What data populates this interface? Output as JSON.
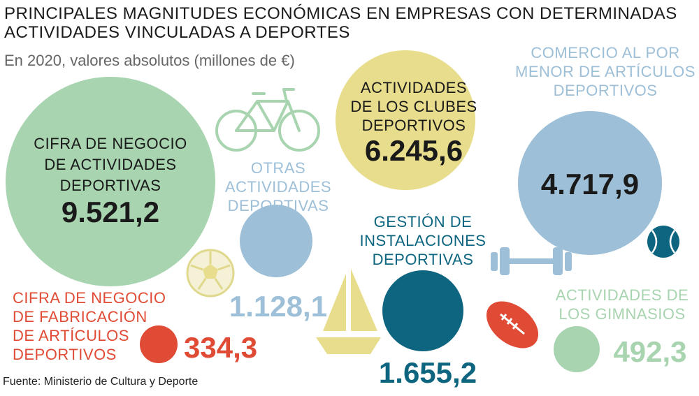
{
  "title_line1": "PRINCIPALES MAGNITUDES ECONÓMICAS EN EMPRESAS CON DETERMINADAS",
  "title_line2": "ACTIVIDADES VINCULADAS A DEPORTES",
  "subtitle": "En 2020, valores absolutos (millones de €)",
  "source": "Fuente: Ministerio de Cultura y Deporte",
  "colors": {
    "green": "#a8d4b0",
    "yellow": "#e8dd8c",
    "lightblue": "#9dbfd7",
    "darkblue": "#0e6580",
    "red": "#e04b35",
    "text_dark": "#1a1a1a"
  },
  "chart_data": {
    "type": "bubble",
    "unit": "millones de €",
    "items": [
      {
        "label_lines": [
          "CIFRA DE NEGOCIO",
          "DE ACTIVIDADES",
          "DEPORTIVAS"
        ],
        "value": 9521.2,
        "value_label": "9.521,2",
        "color": "green"
      },
      {
        "label_lines": [
          "ACTIVIDADES",
          "DE LOS CLUBES",
          "DEPORTIVOS"
        ],
        "value": 6245.6,
        "value_label": "6.245,6",
        "color": "yellow"
      },
      {
        "label_lines": [
          "COMERCIO AL POR",
          "MENOR DE ARTÍCULOS",
          "DEPORTIVOS"
        ],
        "value": 4717.9,
        "value_label": "4.717,9",
        "color": "lightblue"
      },
      {
        "label_lines": [
          "OTRAS",
          "ACTIVIDADES",
          "DEPORTIVAS"
        ],
        "value": 1128.1,
        "value_label": "1.128,1",
        "color": "lightblue"
      },
      {
        "label_lines": [
          "GESTIÓN DE",
          "INSTALACIONES",
          "DEPORTIVAS"
        ],
        "value": 1655.2,
        "value_label": "1.655,2",
        "color": "darkblue"
      },
      {
        "label_lines": [
          "CIFRA DE NEGOCIO",
          "DE FABRICACIÓN",
          "DE ARTÍCULOS",
          "DEPORTIVOS"
        ],
        "value": 334.3,
        "value_label": "334,3",
        "color": "red"
      },
      {
        "label_lines": [
          "ACTIVIDADES DE",
          "LOS GIMNASIOS"
        ],
        "value": 492.3,
        "value_label": "492,3",
        "color": "green"
      }
    ]
  },
  "icons": [
    "bicycle-icon",
    "soccer-ball-icon",
    "sailboat-icon",
    "dumbbell-icon",
    "rugby-ball-icon",
    "baseball-icon"
  ]
}
